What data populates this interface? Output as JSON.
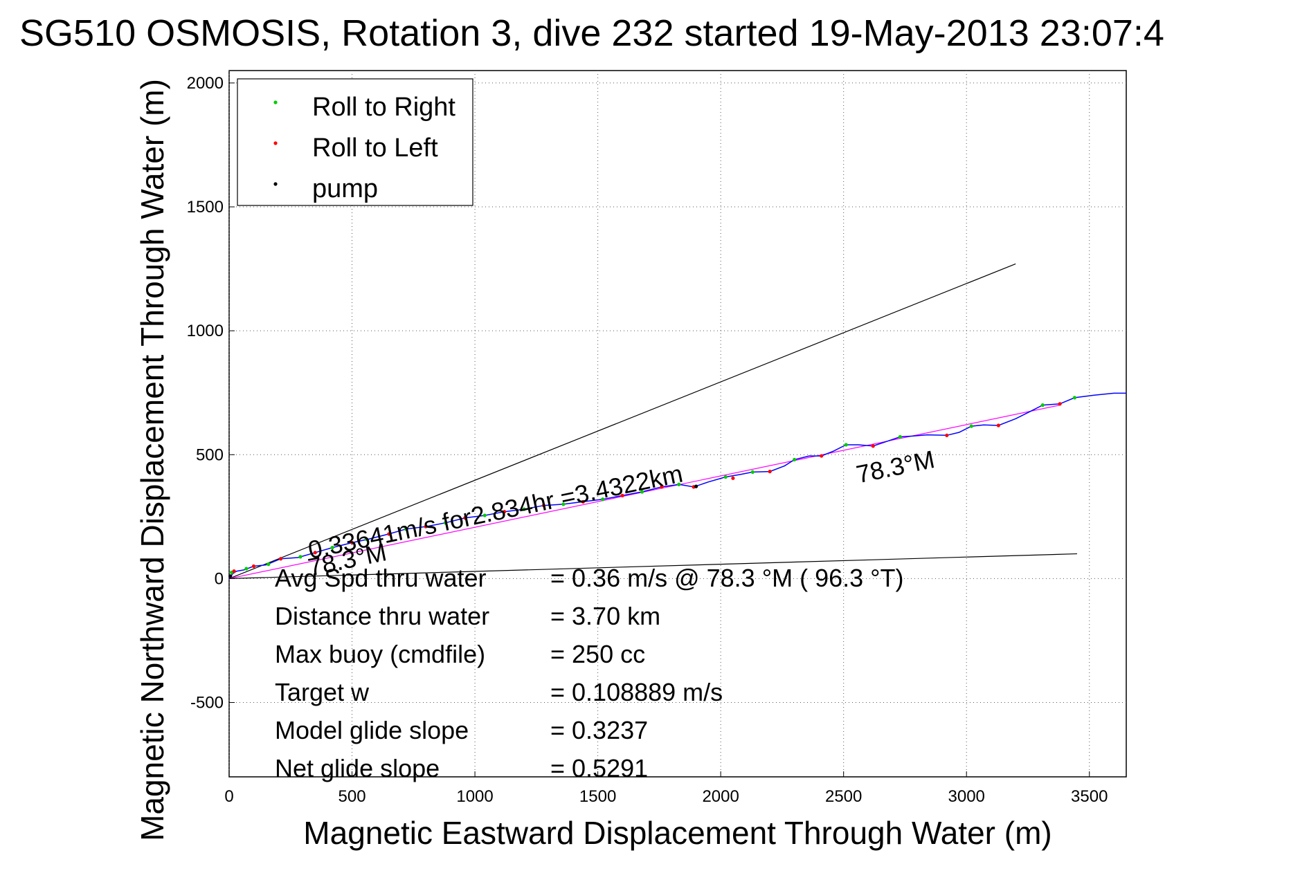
{
  "chart_data": {
    "type": "line",
    "title": "SG510 OSMOSIS, Rotation 3, dive 232 started 19-May-2013 23:07:4",
    "xlabel": "Magnetic Eastward Displacement Through Water (m)",
    "ylabel": "Magnetic Northward Displacement Through Water (m)",
    "xlim": [
      0,
      3650
    ],
    "ylim": [
      -800,
      2050
    ],
    "xticks": [
      0,
      500,
      1000,
      1500,
      2000,
      2500,
      3000,
      3500
    ],
    "yticks": [
      -500,
      0,
      500,
      1000,
      1500,
      2000
    ],
    "grid": true,
    "legend": {
      "position": "top-left",
      "entries": [
        {
          "label": "Roll to Right",
          "color": "#00cc00"
        },
        {
          "label": "Roll to Left",
          "color": "#ff0000"
        },
        {
          "label": "pump",
          "color": "#000000"
        }
      ]
    },
    "track": {
      "color": "#0000ff",
      "points": [
        [
          0,
          0
        ],
        [
          15,
          20
        ],
        [
          30,
          30
        ],
        [
          60,
          35
        ],
        [
          100,
          50
        ],
        [
          150,
          55
        ],
        [
          210,
          80
        ],
        [
          280,
          85
        ],
        [
          350,
          105
        ],
        [
          420,
          125
        ],
        [
          500,
          145
        ],
        [
          570,
          160
        ],
        [
          650,
          180
        ],
        [
          720,
          200
        ],
        [
          800,
          210
        ],
        [
          880,
          225
        ],
        [
          960,
          245
        ],
        [
          1040,
          255
        ],
        [
          1120,
          270
        ],
        [
          1200,
          280
        ],
        [
          1280,
          295
        ],
        [
          1360,
          300
        ],
        [
          1440,
          310
        ],
        [
          1520,
          320
        ],
        [
          1600,
          335
        ],
        [
          1680,
          350
        ],
        [
          1760,
          370
        ],
        [
          1830,
          380
        ],
        [
          1890,
          370
        ],
        [
          1950,
          390
        ],
        [
          2020,
          410
        ],
        [
          2080,
          420
        ],
        [
          2130,
          430
        ],
        [
          2200,
          432
        ],
        [
          2260,
          455
        ],
        [
          2300,
          480
        ],
        [
          2360,
          495
        ],
        [
          2410,
          495
        ],
        [
          2460,
          515
        ],
        [
          2510,
          540
        ],
        [
          2560,
          540
        ],
        [
          2620,
          535
        ],
        [
          2680,
          555
        ],
        [
          2730,
          572
        ],
        [
          2780,
          575
        ],
        [
          2840,
          580
        ],
        [
          2920,
          578
        ],
        [
          2970,
          590
        ],
        [
          3020,
          615
        ],
        [
          3070,
          620
        ],
        [
          3130,
          618
        ],
        [
          3200,
          645
        ],
        [
          3250,
          670
        ],
        [
          3310,
          700
        ],
        [
          3380,
          705
        ],
        [
          3440,
          730
        ],
        [
          3520,
          740
        ],
        [
          3600,
          748
        ],
        [
          3650,
          748
        ]
      ]
    },
    "roll_right_points": [
      [
        10,
        25
      ],
      [
        70,
        40
      ],
      [
        160,
        58
      ],
      [
        290,
        88
      ],
      [
        420,
        125
      ],
      [
        560,
        158
      ],
      [
        720,
        200
      ],
      [
        880,
        225
      ],
      [
        1040,
        255
      ],
      [
        1200,
        280
      ],
      [
        1360,
        300
      ],
      [
        1520,
        320
      ],
      [
        1680,
        350
      ],
      [
        1830,
        380
      ],
      [
        2020,
        410
      ],
      [
        2130,
        430
      ],
      [
        2300,
        480
      ],
      [
        2510,
        540
      ],
      [
        2730,
        572
      ],
      [
        3020,
        615
      ],
      [
        3310,
        700
      ],
      [
        3440,
        730
      ]
    ],
    "roll_left_points": [
      [
        20,
        30
      ],
      [
        100,
        50
      ],
      [
        210,
        80
      ],
      [
        350,
        105
      ],
      [
        500,
        145
      ],
      [
        650,
        180
      ],
      [
        800,
        210
      ],
      [
        960,
        245
      ],
      [
        1120,
        270
      ],
      [
        1280,
        295
      ],
      [
        1440,
        310
      ],
      [
        1600,
        335
      ],
      [
        1760,
        370
      ],
      [
        1890,
        370
      ],
      [
        2050,
        405
      ],
      [
        2200,
        432
      ],
      [
        2410,
        495
      ],
      [
        2620,
        535
      ],
      [
        2920,
        578
      ],
      [
        3130,
        618
      ],
      [
        3380,
        705
      ]
    ],
    "pump_points": [
      [
        5,
        10
      ],
      [
        1900,
        372
      ]
    ],
    "heading_lines": [
      {
        "from": [
          0,
          0
        ],
        "to": [
          3200,
          1270
        ],
        "color": "#000000"
      },
      {
        "from": [
          0,
          0
        ],
        "to": [
          3450,
          100
        ],
        "color": "#000000"
      },
      {
        "from": [
          0,
          0
        ],
        "to": [
          3380,
          700
        ],
        "color": "#ff00ff"
      }
    ],
    "annotations": [
      {
        "text": "0.33641m/s for2.834hr =3.4322km",
        "x": 330,
        "y": 80,
        "rotation": -11.7
      },
      {
        "text": "78.3°M",
        "x": 2560,
        "y": 385,
        "rotation": -11.7
      },
      {
        "text": "78.3°M",
        "x": 330,
        "y": 10,
        "rotation": -11.7
      }
    ],
    "stats": [
      {
        "label": "Avg Spd thru water",
        "value": "=  0.36 m/s @  78.3 °M ( 96.3 °T)"
      },
      {
        "label": "Distance thru water",
        "value": "=  3.70 km"
      },
      {
        "label": "Max buoy (cmdfile)",
        "value": "= 250 cc"
      },
      {
        "label": "Target w",
        "value": "= 0.108889 m/s"
      },
      {
        "label": "Model glide slope",
        "value": "= 0.3237"
      },
      {
        "label": "Net glide slope",
        "value": "= 0.5291"
      }
    ]
  }
}
